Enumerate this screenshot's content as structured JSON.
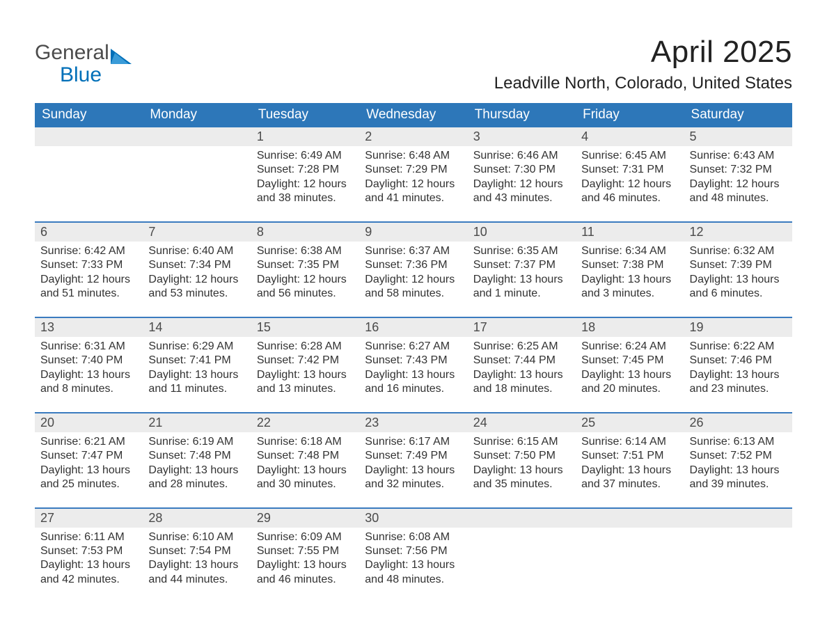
{
  "logo": {
    "word1": "General",
    "word2": "Blue"
  },
  "title": "April 2025",
  "location": "Leadville North, Colorado, United States",
  "colors": {
    "header_bg": "#2d77b9",
    "header_text": "#ffffff",
    "week_border": "#3a7bbf",
    "daynum_bg": "#ececec",
    "body_text": "#323232",
    "logo_blue": "#006fb8",
    "logo_gray": "#4c4c4c",
    "page_bg": "#ffffff"
  },
  "day_headers": [
    "Sunday",
    "Monday",
    "Tuesday",
    "Wednesday",
    "Thursday",
    "Friday",
    "Saturday"
  ],
  "labels": {
    "sunrise": "Sunrise: ",
    "sunset": "Sunset: ",
    "daylight": "Daylight: "
  },
  "weeks": [
    [
      null,
      null,
      {
        "n": "1",
        "sunrise": "6:49 AM",
        "sunset": "7:28 PM",
        "daylight": "12 hours and 38 minutes."
      },
      {
        "n": "2",
        "sunrise": "6:48 AM",
        "sunset": "7:29 PM",
        "daylight": "12 hours and 41 minutes."
      },
      {
        "n": "3",
        "sunrise": "6:46 AM",
        "sunset": "7:30 PM",
        "daylight": "12 hours and 43 minutes."
      },
      {
        "n": "4",
        "sunrise": "6:45 AM",
        "sunset": "7:31 PM",
        "daylight": "12 hours and 46 minutes."
      },
      {
        "n": "5",
        "sunrise": "6:43 AM",
        "sunset": "7:32 PM",
        "daylight": "12 hours and 48 minutes."
      }
    ],
    [
      {
        "n": "6",
        "sunrise": "6:42 AM",
        "sunset": "7:33 PM",
        "daylight": "12 hours and 51 minutes."
      },
      {
        "n": "7",
        "sunrise": "6:40 AM",
        "sunset": "7:34 PM",
        "daylight": "12 hours and 53 minutes."
      },
      {
        "n": "8",
        "sunrise": "6:38 AM",
        "sunset": "7:35 PM",
        "daylight": "12 hours and 56 minutes."
      },
      {
        "n": "9",
        "sunrise": "6:37 AM",
        "sunset": "7:36 PM",
        "daylight": "12 hours and 58 minutes."
      },
      {
        "n": "10",
        "sunrise": "6:35 AM",
        "sunset": "7:37 PM",
        "daylight": "13 hours and 1 minute."
      },
      {
        "n": "11",
        "sunrise": "6:34 AM",
        "sunset": "7:38 PM",
        "daylight": "13 hours and 3 minutes."
      },
      {
        "n": "12",
        "sunrise": "6:32 AM",
        "sunset": "7:39 PM",
        "daylight": "13 hours and 6 minutes."
      }
    ],
    [
      {
        "n": "13",
        "sunrise": "6:31 AM",
        "sunset": "7:40 PM",
        "daylight": "13 hours and 8 minutes."
      },
      {
        "n": "14",
        "sunrise": "6:29 AM",
        "sunset": "7:41 PM",
        "daylight": "13 hours and 11 minutes."
      },
      {
        "n": "15",
        "sunrise": "6:28 AM",
        "sunset": "7:42 PM",
        "daylight": "13 hours and 13 minutes."
      },
      {
        "n": "16",
        "sunrise": "6:27 AM",
        "sunset": "7:43 PM",
        "daylight": "13 hours and 16 minutes."
      },
      {
        "n": "17",
        "sunrise": "6:25 AM",
        "sunset": "7:44 PM",
        "daylight": "13 hours and 18 minutes."
      },
      {
        "n": "18",
        "sunrise": "6:24 AM",
        "sunset": "7:45 PM",
        "daylight": "13 hours and 20 minutes."
      },
      {
        "n": "19",
        "sunrise": "6:22 AM",
        "sunset": "7:46 PM",
        "daylight": "13 hours and 23 minutes."
      }
    ],
    [
      {
        "n": "20",
        "sunrise": "6:21 AM",
        "sunset": "7:47 PM",
        "daylight": "13 hours and 25 minutes."
      },
      {
        "n": "21",
        "sunrise": "6:19 AM",
        "sunset": "7:48 PM",
        "daylight": "13 hours and 28 minutes."
      },
      {
        "n": "22",
        "sunrise": "6:18 AM",
        "sunset": "7:48 PM",
        "daylight": "13 hours and 30 minutes."
      },
      {
        "n": "23",
        "sunrise": "6:17 AM",
        "sunset": "7:49 PM",
        "daylight": "13 hours and 32 minutes."
      },
      {
        "n": "24",
        "sunrise": "6:15 AM",
        "sunset": "7:50 PM",
        "daylight": "13 hours and 35 minutes."
      },
      {
        "n": "25",
        "sunrise": "6:14 AM",
        "sunset": "7:51 PM",
        "daylight": "13 hours and 37 minutes."
      },
      {
        "n": "26",
        "sunrise": "6:13 AM",
        "sunset": "7:52 PM",
        "daylight": "13 hours and 39 minutes."
      }
    ],
    [
      {
        "n": "27",
        "sunrise": "6:11 AM",
        "sunset": "7:53 PM",
        "daylight": "13 hours and 42 minutes."
      },
      {
        "n": "28",
        "sunrise": "6:10 AM",
        "sunset": "7:54 PM",
        "daylight": "13 hours and 44 minutes."
      },
      {
        "n": "29",
        "sunrise": "6:09 AM",
        "sunset": "7:55 PM",
        "daylight": "13 hours and 46 minutes."
      },
      {
        "n": "30",
        "sunrise": "6:08 AM",
        "sunset": "7:56 PM",
        "daylight": "13 hours and 48 minutes."
      },
      null,
      null,
      null
    ]
  ]
}
